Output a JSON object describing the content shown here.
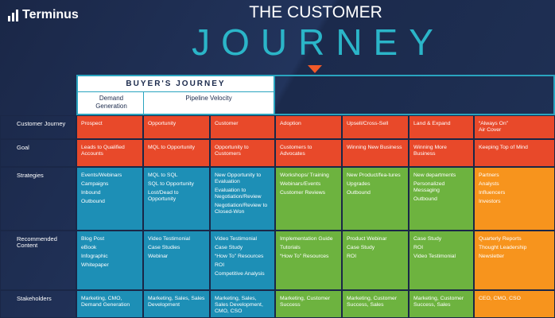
{
  "logo": "Terminus",
  "title": {
    "line1": "THE CUSTOMER",
    "line2": "JOURNEY"
  },
  "header": {
    "group": "BUYER'S JOURNEY",
    "sub": [
      "Demand Generation",
      "Pipeline Velocity"
    ]
  },
  "rows": [
    {
      "label": "Customer Journey",
      "cells": [
        [
          "Prospect"
        ],
        [
          "Opportunity"
        ],
        [
          "Customer"
        ],
        [
          "Adoption"
        ],
        [
          "Upsell/Cross-Sell"
        ],
        [
          "Land & Expand"
        ],
        [
          "“Always On”",
          "Air Cover"
        ]
      ]
    },
    {
      "label": "Goal",
      "cells": [
        [
          "Leads to Qualified Accounts"
        ],
        [
          "MQL to Opportunity"
        ],
        [
          "Opportunity to Customers"
        ],
        [
          "Customers to Advocates"
        ],
        [
          "Winning New Business"
        ],
        [
          "Winning More Business"
        ],
        [
          "Keeping Top of Mind"
        ]
      ]
    },
    {
      "label": "Strategies",
      "cells": [
        [
          "Events/Webinars",
          "Campaigns",
          "Inbound",
          "Outbound"
        ],
        [
          "MQL to SQL",
          "SQL to Opportunity",
          "Lost/Dead to Opportunity"
        ],
        [
          "New Opportunity to Evaluation",
          "Evaluation to Negotiation/Review",
          "Negotiation/Review to Closed-Won"
        ],
        [
          "Workshops/ Training",
          "Webinars/Events",
          "Customer Reviews"
        ],
        [
          "New Product/fea-tures",
          "Upgrades",
          "Outbound"
        ],
        [
          "New departments",
          "Personalized Messaging",
          "Outbound"
        ],
        [
          "Partners",
          "Analysts",
          "Influencers",
          "Investors"
        ]
      ]
    },
    {
      "label": "Recommended Content",
      "cells": [
        [
          "Blog Post",
          "eBook",
          "Infographic",
          "Whitepaper"
        ],
        [
          "Video Testimonial",
          "Case Studies",
          "Webinar"
        ],
        [
          "Video Testimonial",
          "Case Study",
          "“How To” Resources",
          "ROI",
          "Competitive Analysis"
        ],
        [
          "Implementation Guide",
          "Tutorials",
          "“How To” Resources"
        ],
        [
          "Product Webinar",
          "Case Study",
          "ROI"
        ],
        [
          "Case Study",
          "ROI",
          "Video Testimonial"
        ],
        [
          "Quarterly Reports",
          "Thought Leadership",
          "Newsletter"
        ]
      ]
    },
    {
      "label": "Stakeholders",
      "cells": [
        [
          "Marketing, CMO, Demand Generation"
        ],
        [
          "Marketing, Sales, Sales Development"
        ],
        [
          "Marketing, Sales, Sales Development, CMO, CSO"
        ],
        [
          "Marketing, Customer Success"
        ],
        [
          "Marketing, Customer Success, Sales"
        ],
        [
          "Marketing, Customer Success, Sales"
        ],
        [
          "CEO, CMO, CSO"
        ]
      ]
    }
  ]
}
